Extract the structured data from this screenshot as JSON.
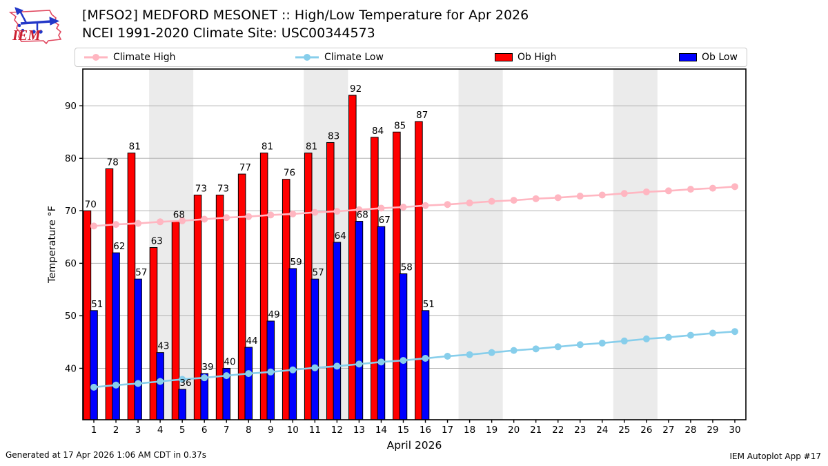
{
  "header": {
    "title_line1": "[MFSO2] MEDFORD MESONET :: High/Low Temperature for Apr 2026",
    "title_line2": "NCEI 1991-2020 Climate Site: USC00344573",
    "logo_text": "IEM"
  },
  "legend": {
    "items": [
      {
        "label": "Climate High",
        "type": "line",
        "color": "#ffb6c1"
      },
      {
        "label": "Climate Low",
        "type": "line",
        "color": "#87ceeb"
      },
      {
        "label": "Ob High",
        "type": "rect",
        "color": "#ff0000"
      },
      {
        "label": "Ob Low",
        "type": "rect",
        "color": "#0000ff"
      }
    ]
  },
  "footer": {
    "left": "Generated at 17 Apr 2026 1:06 AM CDT in 0.37s",
    "right": "IEM Autoplot App #17"
  },
  "chart_data": {
    "type": "bar",
    "title": "[MFSO2] MEDFORD MESONET :: High/Low Temperature for Apr 2026",
    "xlabel": "April 2026",
    "ylabel": "Temperature °F",
    "x": [
      1,
      2,
      3,
      4,
      5,
      6,
      7,
      8,
      9,
      10,
      11,
      12,
      13,
      14,
      15,
      16,
      17,
      18,
      19,
      20,
      21,
      22,
      23,
      24,
      25,
      26,
      27,
      28,
      29,
      30
    ],
    "ylim": [
      30.2,
      97
    ],
    "yticks": [
      40,
      50,
      60,
      70,
      80,
      90
    ],
    "grid_on": true,
    "grid_color": "#b0b0b0",
    "band_color": "#ebebeb",
    "legend_position": "top",
    "weekend_bands": [
      [
        3.5,
        5.5
      ],
      [
        10.5,
        12.5
      ],
      [
        17.5,
        19.5
      ],
      [
        24.5,
        26.5
      ]
    ],
    "series": [
      {
        "name": "Climate High",
        "type": "line",
        "color": "#ffb6c1",
        "values": [
          67.1,
          67.4,
          67.6,
          67.9,
          68.1,
          68.4,
          68.7,
          68.9,
          69.2,
          69.4,
          69.7,
          69.9,
          70.2,
          70.5,
          70.7,
          71.0,
          71.2,
          71.5,
          71.8,
          72.0,
          72.3,
          72.5,
          72.8,
          73.0,
          73.3,
          73.6,
          73.8,
          74.1,
          74.3,
          74.6
        ]
      },
      {
        "name": "Climate Low",
        "type": "line",
        "color": "#87ceeb",
        "values": [
          36.4,
          36.8,
          37.1,
          37.5,
          37.9,
          38.2,
          38.6,
          39.0,
          39.3,
          39.7,
          40.1,
          40.4,
          40.8,
          41.2,
          41.5,
          41.9,
          42.3,
          42.6,
          43.0,
          43.4,
          43.7,
          44.1,
          44.5,
          44.8,
          45.2,
          45.6,
          45.9,
          46.3,
          46.7,
          47.0
        ]
      },
      {
        "name": "Ob High",
        "type": "bar",
        "color": "#ff0000",
        "values": [
          70,
          78,
          81,
          63,
          68,
          73,
          73,
          77,
          81,
          76,
          81,
          83,
          92,
          84,
          85,
          87
        ]
      },
      {
        "name": "Ob Low",
        "type": "bar",
        "color": "#0000ff",
        "values": [
          51,
          62,
          57,
          43,
          36,
          39,
          40,
          44,
          49,
          59,
          57,
          64,
          68,
          67,
          58,
          51
        ]
      }
    ]
  }
}
